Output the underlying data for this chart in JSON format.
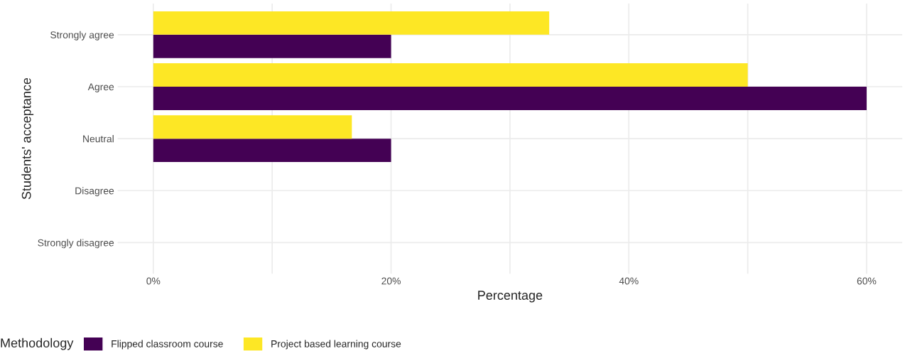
{
  "chart_data": {
    "type": "bar",
    "orientation": "horizontal",
    "xlabel": "Percentage",
    "ylabel": "Students' acceptance",
    "legend_title": "Methodology",
    "categories": [
      "Strongly agree",
      "Agree",
      "Neutral",
      "Disagree",
      "Strongly disagree"
    ],
    "series": [
      {
        "name": "Flipped classroom course",
        "color": "#440154",
        "values": [
          20,
          60,
          20,
          0,
          0
        ]
      },
      {
        "name": "Project based learning course",
        "color": "#fde725",
        "values": [
          33.3,
          50,
          16.7,
          0,
          0
        ]
      }
    ],
    "xlim": [
      -3,
      63
    ],
    "xticks": [
      {
        "value": 0,
        "label": "0%"
      },
      {
        "value": 10,
        "label": null
      },
      {
        "value": 20,
        "label": "20%"
      },
      {
        "value": 30,
        "label": null
      },
      {
        "value": 40,
        "label": "40%"
      },
      {
        "value": 50,
        "label": null
      },
      {
        "value": 60,
        "label": "60%"
      }
    ],
    "grid": true,
    "legend": "bottom"
  }
}
